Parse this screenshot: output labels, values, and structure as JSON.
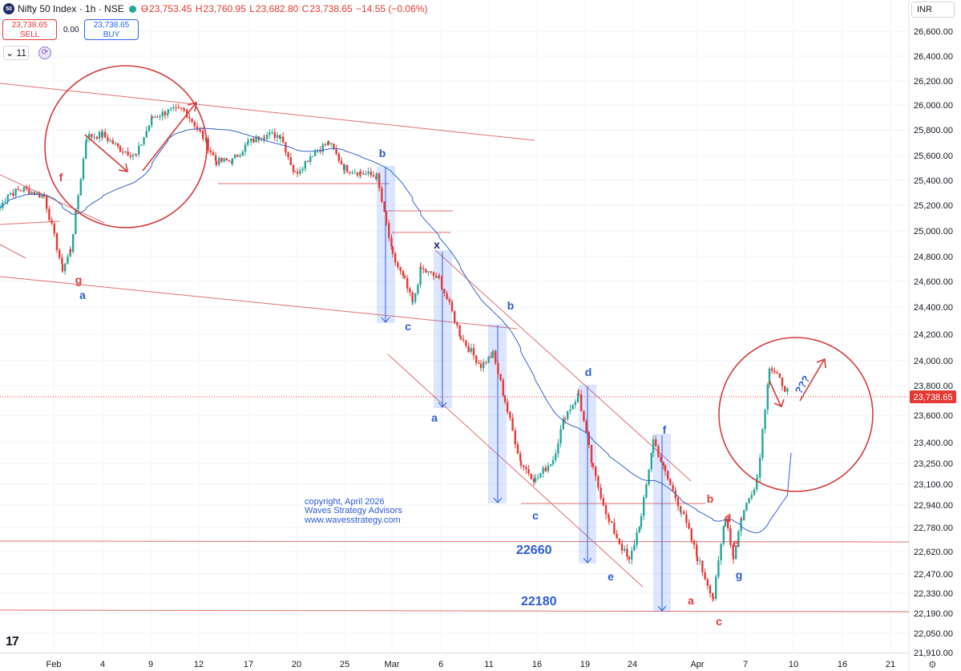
{
  "header": {
    "symbol_title": "Nifty 50 Index · 1h · NSE",
    "logo_text": "50",
    "open_label": "O",
    "open": "23,753.45",
    "high_label": "H",
    "high": "23,760.95",
    "low_label": "L",
    "low": "23,682.80",
    "close_label": "C",
    "close": "23,738.65",
    "change": "−14.55 (−0.06%)"
  },
  "trade": {
    "sell_price": "23,738.65",
    "sell_label": "SELL",
    "spread": "0.00",
    "buy_price": "23,738.65",
    "buy_label": "BUY"
  },
  "interval_value": "11",
  "currency": "INR",
  "last_price": "23,738.65",
  "colors": {
    "up": "#26a69a",
    "down": "#e53935",
    "annotation_red": "#e53935",
    "annotation_blue": "#2e5bd8",
    "ma_line": "#3465c8"
  },
  "watermark": [
    "copyright, April 2026",
    "Waves Strategy Advisors",
    "www.wavesstrategy.com"
  ],
  "chart_data": {
    "type": "candlestick",
    "y_ticks": [
      "26,600.00",
      "26,400.00",
      "26,200.00",
      "26,000.00",
      "25,800.00",
      "25,600.00",
      "25,400.00",
      "25,200.00",
      "25,000.00",
      "24,800.00",
      "24,600.00",
      "24,400.00",
      "24,200.00",
      "24,000.00",
      "23,800.00",
      "23,600.00",
      "23,400.00",
      "23,250.00",
      "23,100.00",
      "22,940.00",
      "22,780.00",
      "22,620.00",
      "22,470.00",
      "22,330.00",
      "22,190.00",
      "22,050.00",
      "21,910.00"
    ],
    "x_ticks": [
      "Feb",
      "4",
      "9",
      "12",
      "17",
      "20",
      "25",
      "Mar",
      "6",
      "11",
      "16",
      "19",
      "24",
      "Apr",
      "7",
      "10",
      "16",
      "21"
    ],
    "close_path": [
      [
        "Jan 28",
        25180
      ],
      [
        "Jan 29",
        25290
      ],
      [
        "Jan 30",
        25330
      ],
      [
        "Feb 1",
        25270
      ],
      [
        "Feb 1",
        24700
      ],
      [
        "Feb 2",
        24850
      ],
      [
        "Feb 3",
        25750
      ],
      [
        "Feb 4",
        25760
      ],
      [
        "Feb 5",
        25650
      ],
      [
        "Feb 6",
        25600
      ],
      [
        "Feb 9",
        25900
      ],
      [
        "Feb 10",
        25950
      ],
      [
        "Feb 11",
        25960
      ],
      [
        "Feb 12",
        25780
      ],
      [
        "Feb 13",
        25550
      ],
      [
        "Feb 16",
        25560
      ],
      [
        "Feb 17",
        25700
      ],
      [
        "Feb 18",
        25760
      ],
      [
        "Feb 19",
        25760
      ],
      [
        "Feb 20",
        25450
      ],
      [
        "Feb 23",
        25620
      ],
      [
        "Feb 24",
        25700
      ],
      [
        "Feb 25",
        25500
      ],
      [
        "Feb 26",
        25460
      ],
      [
        "Feb 27",
        25430
      ],
      [
        "Mar 2",
        25050
      ],
      [
        "Mar 2",
        24800
      ],
      [
        "Mar 3",
        24600
      ],
      [
        "Mar 4",
        24420
      ],
      [
        "Mar 5",
        24700
      ],
      [
        "Mar 6",
        24620
      ],
      [
        "Mar 9",
        24180
      ],
      [
        "Mar 10",
        23960
      ],
      [
        "Mar 11",
        24050
      ],
      [
        "Mar 12",
        23700
      ],
      [
        "Mar 13",
        23250
      ],
      [
        "Mar 16",
        23130
      ],
      [
        "Mar 17",
        23280
      ],
      [
        "Mar 18",
        23600
      ],
      [
        "Mar 19",
        23740
      ],
      [
        "Mar 20",
        23200
      ],
      [
        "Mar 23",
        22820
      ],
      [
        "Mar 24",
        22550
      ],
      [
        "Mar 25",
        22850
      ],
      [
        "Mar 26",
        23420
      ],
      [
        "Mar 27",
        23180
      ],
      [
        "Mar 30",
        22900
      ],
      [
        "Mar 31",
        22580
      ],
      [
        "Apr 1",
        22300
      ],
      [
        "Apr 2",
        22870
      ],
      [
        "Apr 3",
        22580
      ],
      [
        "Apr 6",
        22850
      ],
      [
        "Apr 7",
        23150
      ],
      [
        "Apr 8",
        23950
      ],
      [
        "Apr 9",
        23740
      ]
    ],
    "moving_average": "blue line",
    "levels": [
      {
        "label": "22660",
        "value": 22660
      },
      {
        "label": "22180",
        "value": 22180
      }
    ],
    "wave_labels": {
      "red": [
        "f",
        "g",
        "b",
        "d",
        "e",
        "a",
        "c"
      ],
      "blue": [
        "a",
        "b",
        "c",
        "x",
        "b",
        "a",
        "c",
        "d",
        "e",
        "f",
        "g",
        "???"
      ]
    },
    "ylim": [
      21910,
      26700
    ]
  }
}
